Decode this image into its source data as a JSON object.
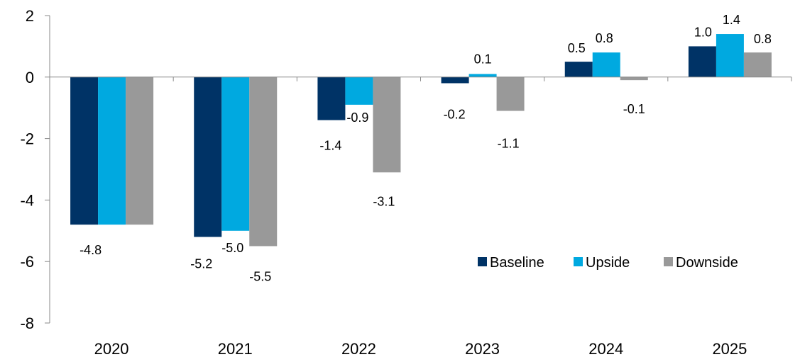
{
  "chart_data": {
    "type": "bar",
    "title": "",
    "xlabel": "",
    "ylabel": "",
    "ylim": [
      -8,
      2
    ],
    "yticks": [
      2,
      0,
      -2,
      -4,
      -6,
      -8
    ],
    "ytick_labels": [
      "2",
      "0",
      "-2",
      "-4",
      "-6",
      "-8"
    ],
    "categories": [
      "2020",
      "2021",
      "2022",
      "2023",
      "2024",
      "2025"
    ],
    "legend_position": "bottom-right",
    "grid": false,
    "series": [
      {
        "name": "Baseline",
        "color": "#003366",
        "values": [
          -4.8,
          -5.2,
          -1.4,
          -0.2,
          0.5,
          1.0
        ],
        "labels": [
          "-4.8",
          "-5.2",
          "-1.4",
          "-0.2",
          "0.5",
          "1.0"
        ]
      },
      {
        "name": "Upside",
        "color": "#00A9E0",
        "values": [
          -4.8,
          -5.0,
          -0.9,
          0.1,
          0.8,
          1.4
        ],
        "labels": [
          "",
          "-5.0",
          "-0.9",
          "0.1",
          "0.8",
          "1.4"
        ]
      },
      {
        "name": "Downside",
        "color": "#999999",
        "values": [
          -4.8,
          -5.5,
          -3.1,
          -1.1,
          -0.1,
          0.8
        ],
        "labels": [
          "",
          "-5.5",
          "-3.1",
          "-1.1",
          "-0.1",
          "0.8"
        ]
      }
    ]
  }
}
